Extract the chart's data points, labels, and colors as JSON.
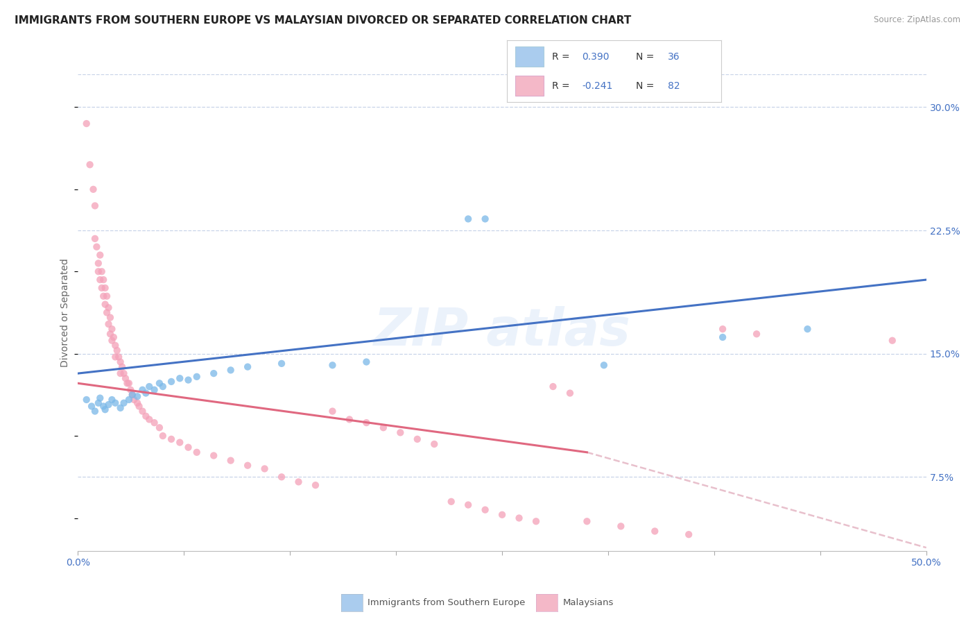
{
  "title": "IMMIGRANTS FROM SOUTHERN EUROPE VS MALAYSIAN DIVORCED OR SEPARATED CORRELATION CHART",
  "source": "Source: ZipAtlas.com",
  "ylabel": "Divorced or Separated",
  "xlim": [
    0.0,
    0.5
  ],
  "ylim": [
    0.03,
    0.32
  ],
  "xticks": [
    0.0,
    0.0625,
    0.125,
    0.1875,
    0.25,
    0.3125,
    0.375,
    0.4375,
    0.5
  ],
  "xtick_labels": [
    "0.0%",
    "",
    "",
    "",
    "",
    "",
    "",
    "",
    "50.0%"
  ],
  "ytick_vals": [
    0.075,
    0.15,
    0.225,
    0.3
  ],
  "ytick_labels": [
    "7.5%",
    "15.0%",
    "22.5%",
    "30.0%"
  ],
  "blue_scatter": [
    [
      0.005,
      0.122
    ],
    [
      0.008,
      0.118
    ],
    [
      0.01,
      0.115
    ],
    [
      0.012,
      0.12
    ],
    [
      0.013,
      0.123
    ],
    [
      0.015,
      0.118
    ],
    [
      0.016,
      0.116
    ],
    [
      0.018,
      0.119
    ],
    [
      0.02,
      0.122
    ],
    [
      0.022,
      0.12
    ],
    [
      0.025,
      0.117
    ],
    [
      0.027,
      0.12
    ],
    [
      0.03,
      0.122
    ],
    [
      0.032,
      0.125
    ],
    [
      0.035,
      0.124
    ],
    [
      0.038,
      0.128
    ],
    [
      0.04,
      0.126
    ],
    [
      0.042,
      0.13
    ],
    [
      0.045,
      0.128
    ],
    [
      0.048,
      0.132
    ],
    [
      0.05,
      0.13
    ],
    [
      0.055,
      0.133
    ],
    [
      0.06,
      0.135
    ],
    [
      0.065,
      0.134
    ],
    [
      0.07,
      0.136
    ],
    [
      0.08,
      0.138
    ],
    [
      0.09,
      0.14
    ],
    [
      0.1,
      0.142
    ],
    [
      0.12,
      0.144
    ],
    [
      0.15,
      0.143
    ],
    [
      0.17,
      0.145
    ],
    [
      0.23,
      0.232
    ],
    [
      0.24,
      0.232
    ],
    [
      0.31,
      0.143
    ],
    [
      0.38,
      0.16
    ],
    [
      0.43,
      0.165
    ]
  ],
  "pink_scatter": [
    [
      0.005,
      0.29
    ],
    [
      0.007,
      0.265
    ],
    [
      0.009,
      0.25
    ],
    [
      0.01,
      0.24
    ],
    [
      0.01,
      0.22
    ],
    [
      0.011,
      0.215
    ],
    [
      0.012,
      0.205
    ],
    [
      0.012,
      0.2
    ],
    [
      0.013,
      0.21
    ],
    [
      0.013,
      0.195
    ],
    [
      0.014,
      0.2
    ],
    [
      0.014,
      0.19
    ],
    [
      0.015,
      0.195
    ],
    [
      0.015,
      0.185
    ],
    [
      0.016,
      0.19
    ],
    [
      0.016,
      0.18
    ],
    [
      0.017,
      0.185
    ],
    [
      0.017,
      0.175
    ],
    [
      0.018,
      0.178
    ],
    [
      0.018,
      0.168
    ],
    [
      0.019,
      0.172
    ],
    [
      0.019,
      0.162
    ],
    [
      0.02,
      0.165
    ],
    [
      0.02,
      0.158
    ],
    [
      0.021,
      0.16
    ],
    [
      0.022,
      0.155
    ],
    [
      0.022,
      0.148
    ],
    [
      0.023,
      0.152
    ],
    [
      0.024,
      0.148
    ],
    [
      0.025,
      0.145
    ],
    [
      0.025,
      0.138
    ],
    [
      0.026,
      0.142
    ],
    [
      0.027,
      0.138
    ],
    [
      0.028,
      0.135
    ],
    [
      0.029,
      0.132
    ],
    [
      0.03,
      0.132
    ],
    [
      0.031,
      0.128
    ],
    [
      0.032,
      0.125
    ],
    [
      0.033,
      0.122
    ],
    [
      0.035,
      0.12
    ],
    [
      0.036,
      0.118
    ],
    [
      0.038,
      0.115
    ],
    [
      0.04,
      0.112
    ],
    [
      0.042,
      0.11
    ],
    [
      0.045,
      0.108
    ],
    [
      0.048,
      0.105
    ],
    [
      0.05,
      0.1
    ],
    [
      0.055,
      0.098
    ],
    [
      0.06,
      0.096
    ],
    [
      0.065,
      0.093
    ],
    [
      0.07,
      0.09
    ],
    [
      0.08,
      0.088
    ],
    [
      0.09,
      0.085
    ],
    [
      0.1,
      0.082
    ],
    [
      0.11,
      0.08
    ],
    [
      0.12,
      0.075
    ],
    [
      0.13,
      0.072
    ],
    [
      0.14,
      0.07
    ],
    [
      0.15,
      0.115
    ],
    [
      0.16,
      0.11
    ],
    [
      0.17,
      0.108
    ],
    [
      0.18,
      0.105
    ],
    [
      0.19,
      0.102
    ],
    [
      0.2,
      0.098
    ],
    [
      0.21,
      0.095
    ],
    [
      0.22,
      0.06
    ],
    [
      0.23,
      0.058
    ],
    [
      0.24,
      0.055
    ],
    [
      0.25,
      0.052
    ],
    [
      0.26,
      0.05
    ],
    [
      0.27,
      0.048
    ],
    [
      0.28,
      0.13
    ],
    [
      0.29,
      0.126
    ],
    [
      0.3,
      0.048
    ],
    [
      0.32,
      0.045
    ],
    [
      0.34,
      0.042
    ],
    [
      0.36,
      0.04
    ],
    [
      0.38,
      0.165
    ],
    [
      0.4,
      0.162
    ],
    [
      0.48,
      0.158
    ]
  ],
  "blue_line_pts": [
    [
      0.0,
      0.138
    ],
    [
      0.5,
      0.195
    ]
  ],
  "pink_solid_line_pts": [
    [
      0.0,
      0.132
    ],
    [
      0.3,
      0.09
    ]
  ],
  "pink_dash_line_pts": [
    [
      0.3,
      0.09
    ],
    [
      0.5,
      0.032
    ]
  ],
  "blue_dot_color": "#7ab8e8",
  "pink_dot_color": "#f4a0b8",
  "blue_line_color": "#4472c4",
  "pink_line_color": "#e06880",
  "pink_dash_color": "#e8c0cc",
  "legend_blue_patch": "#aaccee",
  "legend_pink_patch": "#f4b8c8",
  "bg_color": "#ffffff",
  "grid_color": "#c8d4e8",
  "title_fontsize": 11,
  "axis_label_fontsize": 10,
  "tick_fontsize": 10,
  "watermark_text": "ZIP atlas",
  "bottom_legend_blue": "Immigrants from Southern Europe",
  "bottom_legend_pink": "Malaysians"
}
